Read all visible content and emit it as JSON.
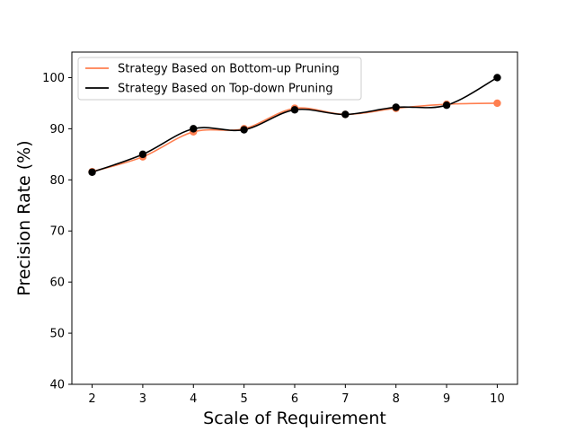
{
  "chart_data": {
    "type": "line",
    "title": "",
    "xlabel": "Scale of Requirement",
    "ylabel": "Precision Rate (%)",
    "x": [
      2,
      3,
      4,
      5,
      6,
      7,
      8,
      9,
      10
    ],
    "xlim": [
      1.6,
      10.4
    ],
    "ylim": [
      40,
      105
    ],
    "xticks": [
      2,
      3,
      4,
      5,
      6,
      7,
      8,
      9,
      10
    ],
    "yticks": [
      40,
      50,
      60,
      70,
      80,
      90,
      100
    ],
    "grid": false,
    "legend_position": "top-left",
    "series": [
      {
        "name": "Strategy Based on Bottom-up Pruning",
        "color": "#ff7f50",
        "values": [
          81.6,
          84.5,
          89.4,
          90.0,
          94.0,
          92.8,
          94.0,
          94.8,
          95.0
        ]
      },
      {
        "name": "Strategy Based on Top-down Pruning",
        "color": "#000000",
        "values": [
          81.5,
          85.0,
          90.0,
          89.8,
          93.7,
          92.8,
          94.2,
          94.6,
          100.0
        ]
      }
    ]
  }
}
